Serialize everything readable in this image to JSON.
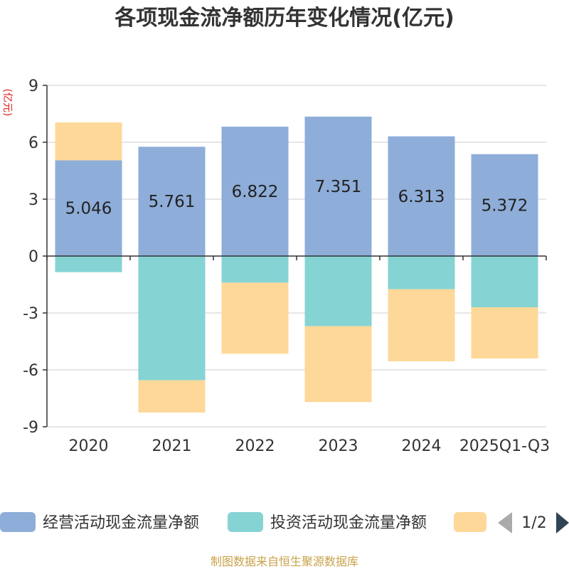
{
  "chart_data": {
    "type": "bar",
    "stacked": true,
    "title": "各项现金流净额历年变化情况(亿元)",
    "ylabel": "(亿元)",
    "categories": [
      "2020",
      "2021",
      "2022",
      "2023",
      "2024",
      "2025Q1-Q3"
    ],
    "ylim": [
      -9,
      9
    ],
    "yticks": [
      9,
      6,
      3,
      0,
      -3,
      -6,
      -9
    ],
    "series": [
      {
        "name": "经营活动现金流量净额",
        "color": "#8eadd9",
        "values": [
          5.046,
          5.761,
          6.822,
          7.351,
          6.313,
          5.372
        ],
        "labels": [
          "5.046",
          "5.761",
          "6.822",
          "7.351",
          "6.313",
          "5.372"
        ]
      },
      {
        "name": "投资活动现金流量净额",
        "color": "#86d3d4",
        "values": [
          -0.85,
          -6.55,
          -1.4,
          -3.7,
          -1.75,
          -2.7
        ]
      },
      {
        "name": "",
        "color": "#fdd898",
        "values": [
          2.0,
          -1.7,
          -3.75,
          -4.0,
          -3.8,
          -2.7
        ]
      }
    ],
    "legend": {
      "page": "1/2",
      "position": "bottom"
    }
  },
  "source": "制图数据来自恒生聚源数据库"
}
